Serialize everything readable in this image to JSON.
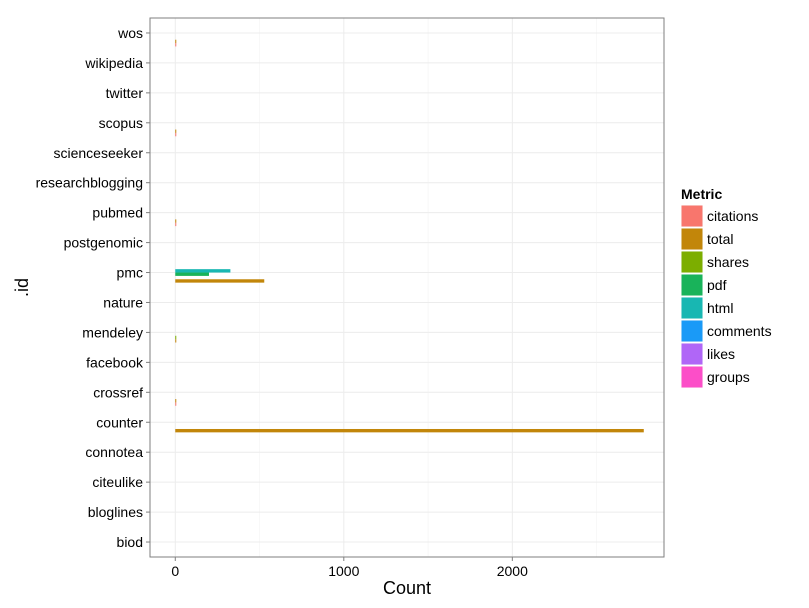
{
  "chart_data": {
    "type": "bar",
    "orientation": "horizontal",
    "xlabel": "Count",
    "ylabel": ".id",
    "xlim": [
      -150,
      2900
    ],
    "x_ticks": [
      0,
      1000,
      2000
    ],
    "x_tick_labels": [
      "0",
      "1000",
      "2000"
    ],
    "grid": true,
    "legend_position": "right",
    "legend": {
      "title": "Metric",
      "entries": [
        {
          "name": "citations",
          "color": "#F8766D"
        },
        {
          "name": "total",
          "color": "#C49A00"
        },
        {
          "name": "shares",
          "color": "#53B400"
        },
        {
          "name": "pdf",
          "color": "#00C094"
        },
        {
          "name": "html",
          "color": "#00B6EB"
        },
        {
          "name": "comments",
          "color": "#A58AFF"
        },
        {
          "name": "likes",
          "color": "#FB61D7"
        },
        {
          "name": "groups",
          "color": "#FF61C3"
        }
      ]
    },
    "colors": {
      "citations": "#F8766D",
      "total": "#C2860A",
      "shares": "#7CAE00",
      "pdf": "#19B35A",
      "html": "#18B7B2",
      "comments": "#1A9AF7",
      "likes": "#B066F7",
      "groups": "#FC4EC8"
    },
    "categories": [
      "biod",
      "bloglines",
      "citeulike",
      "connotea",
      "counter",
      "crossref",
      "facebook",
      "mendeley",
      "nature",
      "pmc",
      "postgenomic",
      "pubmed",
      "researchblogging",
      "scienceseeker",
      "scopus",
      "twitter",
      "wikipedia",
      "wos"
    ],
    "series": [
      {
        "name": "citations",
        "values": [
          0,
          0,
          0,
          0,
          0,
          5,
          0,
          0,
          0,
          0,
          0,
          5,
          0,
          0,
          5,
          0,
          0,
          5
        ]
      },
      {
        "name": "total",
        "values": [
          0,
          0,
          0,
          0,
          2780,
          5,
          0,
          5,
          0,
          528,
          0,
          5,
          0,
          0,
          5,
          0,
          0,
          5
        ]
      },
      {
        "name": "shares",
        "values": [
          0,
          0,
          0,
          0,
          0,
          0,
          0,
          3,
          0,
          0,
          0,
          0,
          0,
          0,
          0,
          0,
          0,
          0
        ]
      },
      {
        "name": "pdf",
        "values": [
          0,
          0,
          0,
          0,
          0,
          0,
          0,
          0,
          0,
          200,
          0,
          0,
          0,
          0,
          0,
          0,
          0,
          0
        ]
      },
      {
        "name": "html",
        "values": [
          0,
          0,
          0,
          0,
          0,
          0,
          0,
          0,
          0,
          327,
          0,
          0,
          0,
          0,
          0,
          0,
          0,
          0
        ]
      },
      {
        "name": "comments",
        "values": [
          0,
          0,
          0,
          0,
          0,
          0,
          0,
          0,
          0,
          0,
          0,
          0,
          0,
          0,
          0,
          0,
          0,
          0
        ]
      },
      {
        "name": "likes",
        "values": [
          0,
          0,
          0,
          0,
          0,
          0,
          0,
          0,
          0,
          0,
          0,
          0,
          0,
          0,
          0,
          0,
          0,
          0
        ]
      },
      {
        "name": "groups",
        "values": [
          0,
          0,
          0,
          0,
          0,
          0,
          0,
          0,
          0,
          0,
          0,
          0,
          0,
          0,
          0,
          0,
          0,
          0
        ]
      }
    ]
  }
}
